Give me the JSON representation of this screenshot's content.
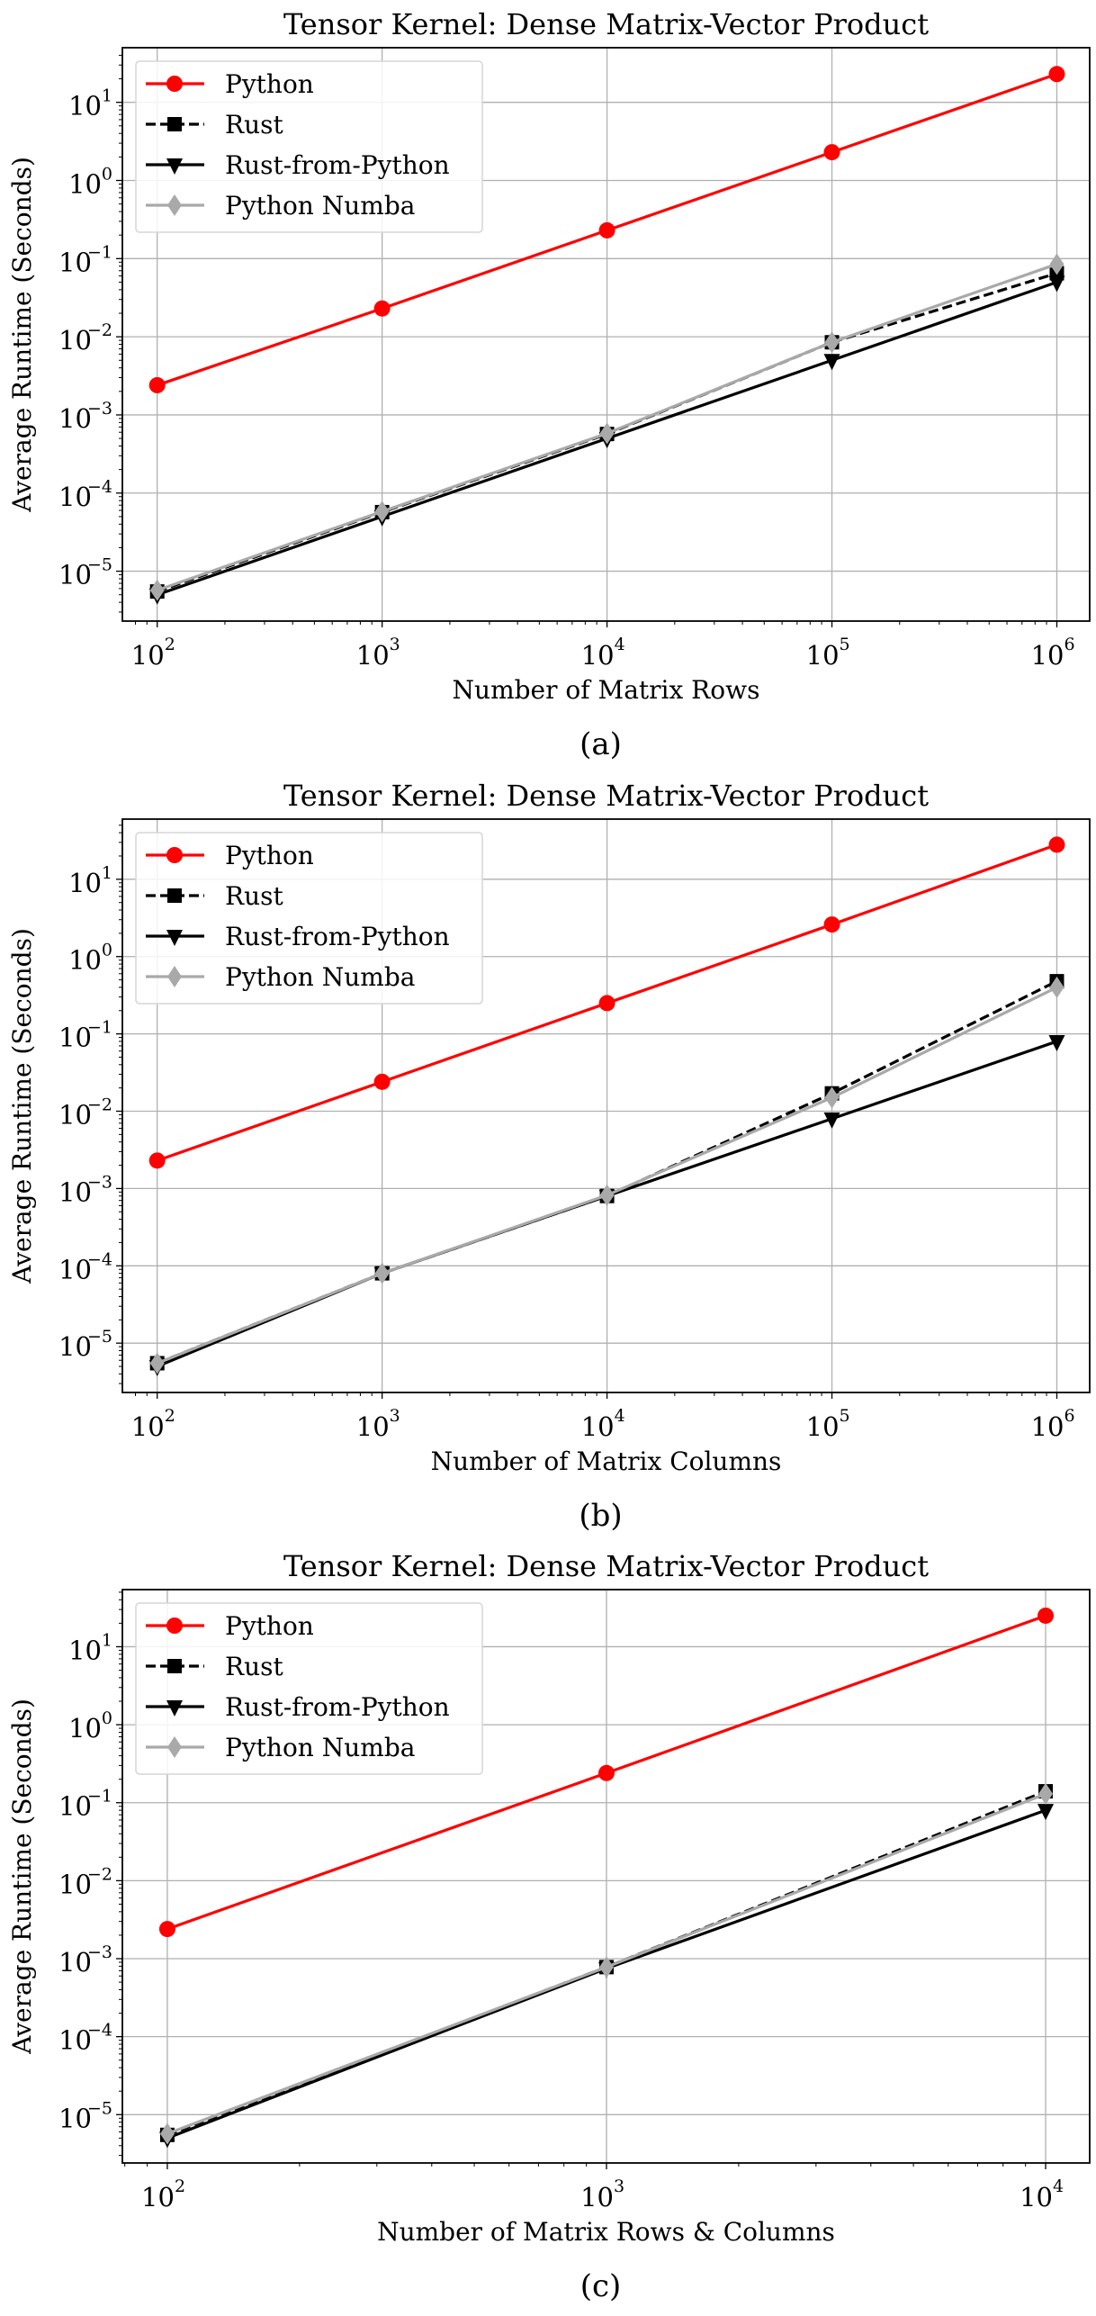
{
  "chart_data": [
    {
      "type": "line",
      "title": "Tensor Kernel: Dense Matrix-Vector Product",
      "xlabel": "Number of Matrix Rows",
      "ylabel": "Average Runtime (Seconds)",
      "caption": "(a)",
      "xscale": "log",
      "yscale": "log",
      "x": [
        100,
        1000,
        10000,
        100000,
        1000000
      ],
      "xticks": [
        {
          "base": "10",
          "exp": "2",
          "value": 100
        },
        {
          "base": "10",
          "exp": "3",
          "value": 1000
        },
        {
          "base": "10",
          "exp": "4",
          "value": 10000
        },
        {
          "base": "10",
          "exp": "5",
          "value": 100000
        },
        {
          "base": "10",
          "exp": "6",
          "value": 1000000
        }
      ],
      "yticks": [
        {
          "base": "10",
          "exp": "1",
          "value": 10
        },
        {
          "base": "10",
          "exp": "0",
          "value": 1
        },
        {
          "base": "10",
          "exp": "−1",
          "value": 0.1
        },
        {
          "base": "10",
          "exp": "−2",
          "value": 0.01
        },
        {
          "base": "10",
          "exp": "−3",
          "value": 0.001
        },
        {
          "base": "10",
          "exp": "−4",
          "value": 0.0001
        },
        {
          "base": "10",
          "exp": "−5",
          "value": 1e-05
        }
      ],
      "xlim": [
        70,
        1400000
      ],
      "ylim": [
        2.3e-06,
        50
      ],
      "grid": true,
      "legend_position": "top-left",
      "series": [
        {
          "name": "Python",
          "color": "#ff0000",
          "marker": "circle",
          "dash": false,
          "values": [
            0.0024,
            0.023,
            0.23,
            2.3,
            23
          ]
        },
        {
          "name": "Rust",
          "color": "#000000",
          "marker": "square",
          "dash": true,
          "values": [
            5.5e-06,
            5.7e-05,
            0.00057,
            0.0085,
            0.065
          ]
        },
        {
          "name": "Rust-from-Python",
          "color": "#000000",
          "marker": "triangle-down",
          "dash": false,
          "values": [
            5e-06,
            5e-05,
            0.0005,
            0.005,
            0.05
          ]
        },
        {
          "name": "Python Numba",
          "color": "#a9a9a9",
          "marker": "diamond",
          "dash": false,
          "values": [
            5.7e-06,
            5.8e-05,
            0.00058,
            0.0085,
            0.085
          ]
        }
      ]
    },
    {
      "type": "line",
      "title": "Tensor Kernel: Dense Matrix-Vector Product",
      "xlabel": "Number of Matrix Columns",
      "ylabel": "Average Runtime (Seconds)",
      "caption": "(b)",
      "xscale": "log",
      "yscale": "log",
      "x": [
        100,
        1000,
        10000,
        100000,
        1000000
      ],
      "xticks": [
        {
          "base": "10",
          "exp": "2",
          "value": 100
        },
        {
          "base": "10",
          "exp": "3",
          "value": 1000
        },
        {
          "base": "10",
          "exp": "4",
          "value": 10000
        },
        {
          "base": "10",
          "exp": "5",
          "value": 100000
        },
        {
          "base": "10",
          "exp": "6",
          "value": 1000000
        }
      ],
      "yticks": [
        {
          "base": "10",
          "exp": "1",
          "value": 10
        },
        {
          "base": "10",
          "exp": "0",
          "value": 1
        },
        {
          "base": "10",
          "exp": "−1",
          "value": 0.1
        },
        {
          "base": "10",
          "exp": "−2",
          "value": 0.01
        },
        {
          "base": "10",
          "exp": "−3",
          "value": 0.001
        },
        {
          "base": "10",
          "exp": "−4",
          "value": 0.0001
        },
        {
          "base": "10",
          "exp": "−5",
          "value": 1e-05
        }
      ],
      "xlim": [
        70,
        1400000
      ],
      "ylim": [
        2.3e-06,
        60
      ],
      "grid": true,
      "legend_position": "top-left",
      "series": [
        {
          "name": "Python",
          "color": "#ff0000",
          "marker": "circle",
          "dash": false,
          "values": [
            0.0023,
            0.024,
            0.25,
            2.6,
            28
          ]
        },
        {
          "name": "Rust",
          "color": "#000000",
          "marker": "square",
          "dash": true,
          "values": [
            5.5e-06,
            8e-05,
            0.0008,
            0.017,
            0.48
          ]
        },
        {
          "name": "Rust-from-Python",
          "color": "#000000",
          "marker": "triangle-down",
          "dash": false,
          "values": [
            5e-06,
            8e-05,
            0.0008,
            0.008,
            0.08
          ]
        },
        {
          "name": "Python Numba",
          "color": "#a9a9a9",
          "marker": "diamond",
          "dash": false,
          "values": [
            5.5e-06,
            8e-05,
            0.00082,
            0.015,
            0.4
          ]
        }
      ]
    },
    {
      "type": "line",
      "title": "Tensor Kernel: Dense Matrix-Vector Product",
      "xlabel": "Number of Matrix Rows & Columns",
      "ylabel": "Average Runtime (Seconds)",
      "caption": "(c)",
      "xscale": "log",
      "yscale": "log",
      "x": [
        100,
        1000,
        10000
      ],
      "xticks": [
        {
          "base": "10",
          "exp": "2",
          "value": 100
        },
        {
          "base": "10",
          "exp": "3",
          "value": 1000
        },
        {
          "base": "10",
          "exp": "4",
          "value": 10000
        }
      ],
      "yticks": [
        {
          "base": "10",
          "exp": "1",
          "value": 10
        },
        {
          "base": "10",
          "exp": "0",
          "value": 1
        },
        {
          "base": "10",
          "exp": "−1",
          "value": 0.1
        },
        {
          "base": "10",
          "exp": "−2",
          "value": 0.01
        },
        {
          "base": "10",
          "exp": "−3",
          "value": 0.001
        },
        {
          "base": "10",
          "exp": "−4",
          "value": 0.0001
        },
        {
          "base": "10",
          "exp": "−5",
          "value": 1e-05
        }
      ],
      "xlim": [
        79,
        12600
      ],
      "ylim": [
        2.4e-06,
        54
      ],
      "grid": true,
      "legend_position": "top-left",
      "series": [
        {
          "name": "Python",
          "color": "#ff0000",
          "marker": "circle",
          "dash": false,
          "values": [
            0.0024,
            0.24,
            25
          ]
        },
        {
          "name": "Rust",
          "color": "#000000",
          "marker": "square",
          "dash": true,
          "values": [
            5.5e-06,
            0.00078,
            0.14
          ]
        },
        {
          "name": "Rust-from-Python",
          "color": "#000000",
          "marker": "triangle-down",
          "dash": false,
          "values": [
            5e-06,
            0.00075,
            0.08
          ]
        },
        {
          "name": "Python Numba",
          "color": "#a9a9a9",
          "marker": "diamond",
          "dash": false,
          "values": [
            5.7e-06,
            0.00078,
            0.13
          ]
        }
      ]
    }
  ]
}
